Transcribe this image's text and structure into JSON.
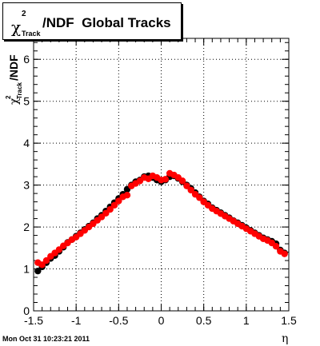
{
  "title": {
    "symbol": "χ",
    "superscript": "2",
    "subscript": "Track",
    "text": "/NDF  Global Tracks"
  },
  "timestamp": "Mon Oct 31 10:23:21 2011",
  "colors": {
    "series_black": "#000000",
    "series_red": "#ff0000",
    "grid": "#000000"
  },
  "chart_data": {
    "type": "scatter",
    "xlabel": "η",
    "ylabel": "χ²_Track/NDF",
    "xlim": [
      -1.5,
      1.5
    ],
    "ylim": [
      0,
      6.5
    ],
    "xticks": [
      -1.5,
      -1,
      -0.5,
      0,
      0.5,
      1,
      1.5
    ],
    "xtick_labels": [
      "-1.5",
      "-1",
      "-0.5",
      "0",
      "0.5",
      "1",
      "1.5"
    ],
    "yticks": [
      0,
      1,
      2,
      3,
      4,
      5,
      6
    ],
    "ytick_labels": [
      "0",
      "1",
      "2",
      "3",
      "4",
      "5",
      "6"
    ],
    "grid": true,
    "series": [
      {
        "color": "black",
        "x": [
          -1.45,
          -1.4,
          -1.35,
          -1.3,
          -1.25,
          -1.2,
          -1.15,
          -1.1,
          -1.05,
          -1.0,
          -0.95,
          -0.9,
          -0.85,
          -0.8,
          -0.75,
          -0.7,
          -0.65,
          -0.6,
          -0.55,
          -0.5,
          -0.45,
          -0.4,
          -0.35,
          -0.3,
          -0.25,
          -0.2,
          -0.15,
          -0.1,
          -0.05,
          0.0,
          0.05,
          0.1,
          0.15,
          0.2,
          0.25,
          0.3,
          0.35,
          0.4,
          0.45,
          0.5,
          0.55,
          0.6,
          0.65,
          0.7,
          0.75,
          0.8,
          0.85,
          0.9,
          0.95,
          1.0,
          1.05,
          1.1,
          1.15,
          1.2,
          1.25,
          1.3,
          1.35,
          1.4,
          1.45
        ],
        "y": [
          0.95,
          1.05,
          1.15,
          1.25,
          1.32,
          1.42,
          1.52,
          1.63,
          1.7,
          1.78,
          1.86,
          1.94,
          2.02,
          2.1,
          2.2,
          2.28,
          2.38,
          2.48,
          2.58,
          2.68,
          2.78,
          2.9,
          3.0,
          3.08,
          3.12,
          3.2,
          3.22,
          3.18,
          3.12,
          3.08,
          3.12,
          3.2,
          3.22,
          3.16,
          3.08,
          3.0,
          2.92,
          2.82,
          2.72,
          2.62,
          2.55,
          2.46,
          2.4,
          2.34,
          2.28,
          2.22,
          2.15,
          2.1,
          2.04,
          1.98,
          1.92,
          1.86,
          1.8,
          1.74,
          1.7,
          1.66,
          1.6,
          1.45,
          1.38
        ]
      },
      {
        "color": "red",
        "x": [
          -1.45,
          -1.4,
          -1.35,
          -1.3,
          -1.25,
          -1.2,
          -1.15,
          -1.1,
          -1.05,
          -1.0,
          -0.95,
          -0.9,
          -0.85,
          -0.8,
          -0.75,
          -0.7,
          -0.65,
          -0.6,
          -0.55,
          -0.5,
          -0.45,
          -0.4,
          -0.35,
          -0.3,
          -0.25,
          -0.2,
          -0.15,
          -0.1,
          -0.05,
          0.0,
          0.05,
          0.1,
          0.15,
          0.2,
          0.25,
          0.3,
          0.35,
          0.4,
          0.45,
          0.5,
          0.55,
          0.6,
          0.65,
          0.7,
          0.75,
          0.8,
          0.85,
          0.9,
          0.95,
          1.0,
          1.05,
          1.1,
          1.15,
          1.2,
          1.25,
          1.3,
          1.35,
          1.4,
          1.45
        ],
        "y": [
          1.15,
          1.1,
          1.2,
          1.3,
          1.38,
          1.46,
          1.55,
          1.62,
          1.7,
          1.76,
          1.84,
          1.92,
          2.0,
          2.08,
          2.16,
          2.24,
          2.33,
          2.42,
          2.52,
          2.62,
          2.72,
          2.76,
          2.98,
          3.04,
          3.1,
          3.18,
          3.15,
          3.22,
          3.18,
          3.12,
          3.14,
          3.28,
          3.24,
          3.18,
          3.1,
          2.98,
          2.88,
          2.78,
          2.7,
          2.6,
          2.52,
          2.44,
          2.38,
          2.32,
          2.26,
          2.2,
          2.14,
          2.08,
          2.02,
          1.96,
          1.9,
          1.84,
          1.78,
          1.72,
          1.68,
          1.62,
          1.54,
          1.42,
          1.36
        ]
      }
    ]
  }
}
